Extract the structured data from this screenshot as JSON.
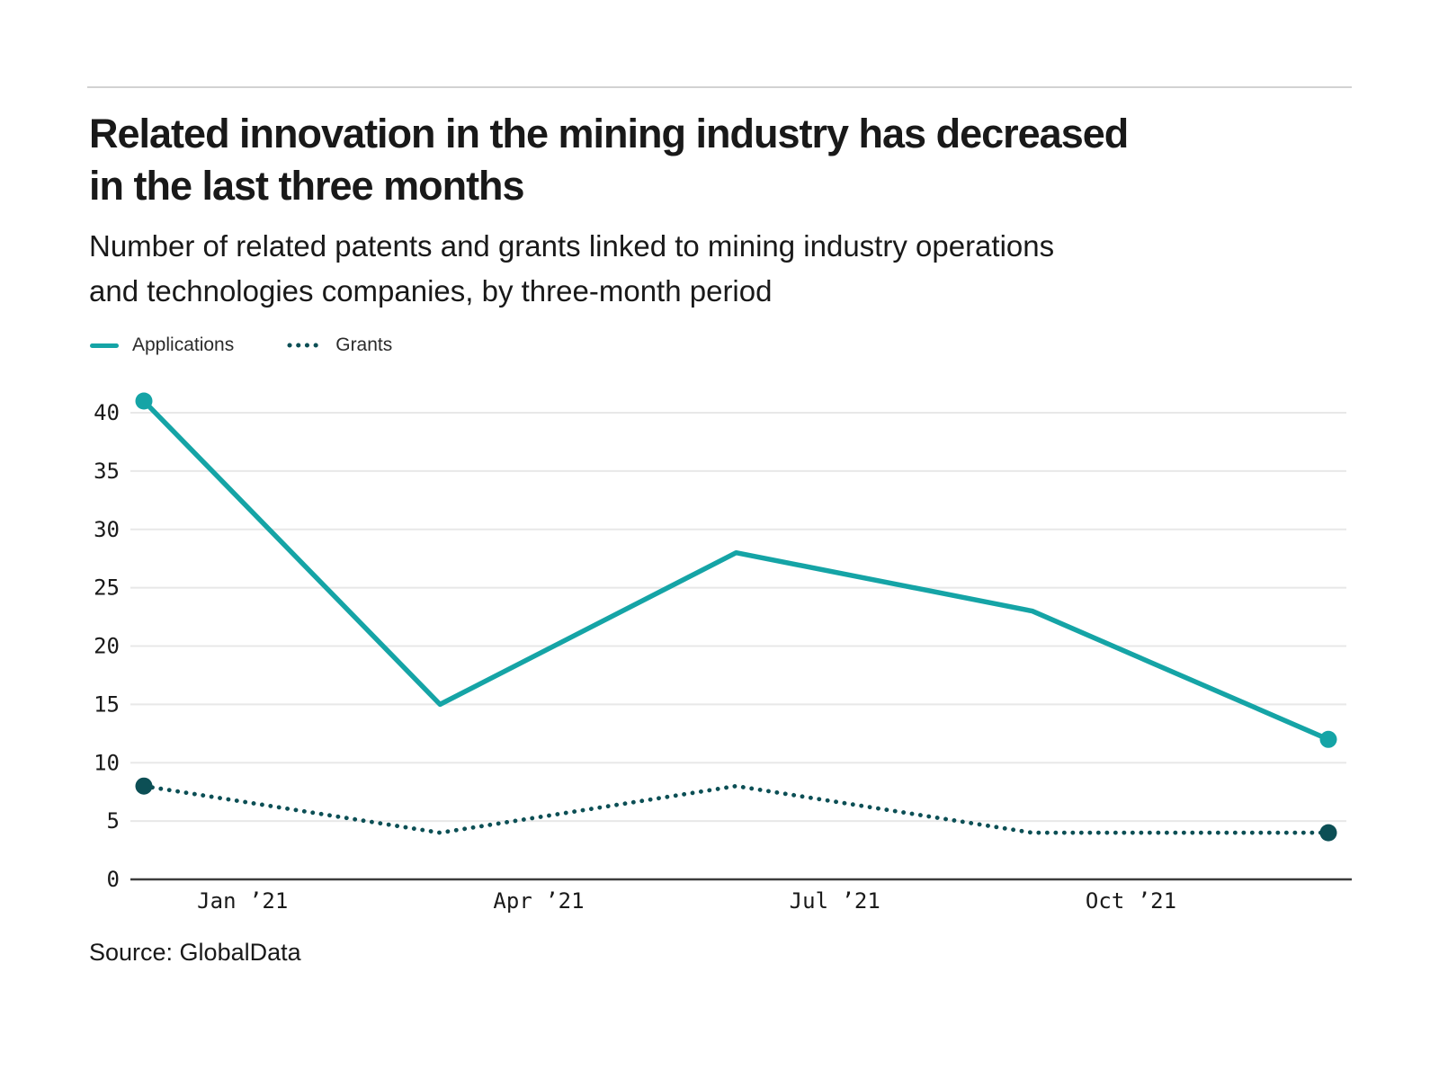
{
  "page": {
    "title_lines": [
      "Related innovation in the mining industry has decreased",
      "in the last three months"
    ],
    "subtitle_lines": [
      "Number of related patents and grants linked to mining industry operations",
      "and technologies companies, by three-month period"
    ],
    "source": "Source: GlobalData"
  },
  "legend": {
    "applications_label": "Applications",
    "grants_label": "Grants"
  },
  "colors": {
    "applications": "#15a4a6",
    "grants": "#0c4f55",
    "grid": "#e8e8e8",
    "axis": "#3d3d3d",
    "tick_text": "#1a1a1a"
  },
  "chart_data": {
    "type": "line",
    "x_months": [
      0,
      3,
      6,
      9,
      12
    ],
    "series": [
      {
        "name": "Applications",
        "values": [
          41,
          15,
          28,
          23,
          12
        ],
        "style": "solid",
        "color_key": "applications"
      },
      {
        "name": "Grants",
        "values": [
          8,
          4,
          8,
          4,
          4
        ],
        "style": "dotted",
        "color_key": "grants"
      }
    ],
    "x_tick_labels": [
      "Jan ’21",
      "Apr ’21",
      "Jul ’21",
      "Oct ’21"
    ],
    "x_tick_months": [
      1,
      4,
      7,
      10
    ],
    "y_ticks": [
      0,
      5,
      10,
      15,
      20,
      25,
      30,
      35,
      40
    ],
    "ylim": [
      0,
      41
    ],
    "grid": "horizontal",
    "legend_position": "top-left",
    "endpoint_markers": true
  }
}
